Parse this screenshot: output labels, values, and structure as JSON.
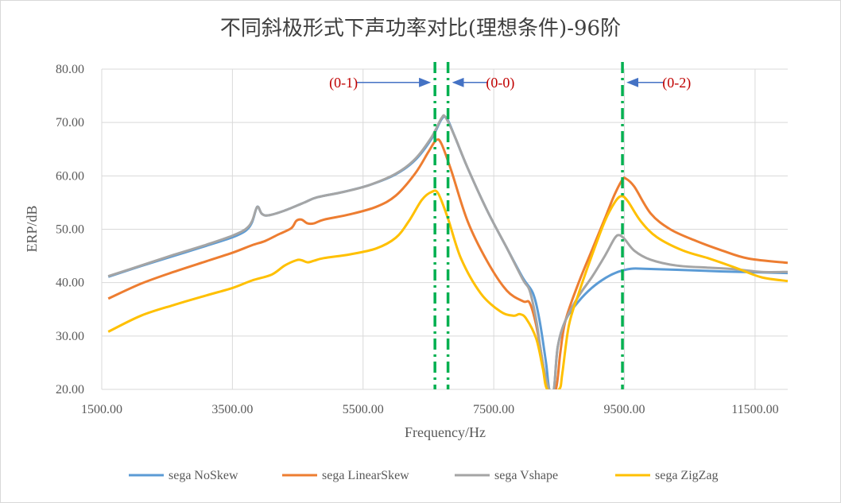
{
  "chart_data": {
    "type": "line",
    "title": "不同斜极形式下声功率对比(理想条件)-96阶",
    "xlabel": "Frequency/Hz",
    "ylabel": "ERP/dB",
    "xlim": [
      1500,
      12000
    ],
    "ylim": [
      20,
      80
    ],
    "xticks": [
      1500,
      3500,
      5500,
      7500,
      9500,
      11500
    ],
    "xtick_labels": [
      "1500.00",
      "3500.00",
      "5500.00",
      "7500.00",
      "9500.00",
      "11500.00"
    ],
    "yticks": [
      20,
      30,
      40,
      50,
      60,
      70,
      80
    ],
    "ytick_labels": [
      "20.00",
      "30.00",
      "40.00",
      "50.00",
      "60.00",
      "70.00",
      "80.00"
    ],
    "grid": true,
    "legend_position": "bottom",
    "series": [
      {
        "name": "sega NoSkew",
        "color": "#5b9bd5",
        "points": [
          [
            1600,
            41.1
          ],
          [
            2100,
            43.1
          ],
          [
            2600,
            45.0
          ],
          [
            3100,
            46.9
          ],
          [
            3500,
            48.5
          ],
          [
            3700,
            49.7
          ],
          [
            3800,
            51.3
          ],
          [
            3880,
            54.2
          ],
          [
            3950,
            52.9
          ],
          [
            4050,
            52.6
          ],
          [
            4300,
            53.5
          ],
          [
            4600,
            55.0
          ],
          [
            4800,
            56.0
          ],
          [
            5200,
            57.0
          ],
          [
            5600,
            58.3
          ],
          [
            6000,
            60.3
          ],
          [
            6300,
            63.0
          ],
          [
            6550,
            67.0
          ],
          [
            6700,
            70.6
          ],
          [
            6780,
            70.8
          ],
          [
            6900,
            67.5
          ],
          [
            7100,
            61.5
          ],
          [
            7400,
            53.5
          ],
          [
            7700,
            46.5
          ],
          [
            7950,
            40.8
          ],
          [
            8100,
            38.0
          ],
          [
            8200,
            33.0
          ],
          [
            8300,
            25.0
          ],
          [
            8350,
            20.0
          ],
          [
            8420,
            20.0
          ],
          [
            8480,
            28.0
          ],
          [
            8600,
            33.0
          ],
          [
            8800,
            36.5
          ],
          [
            9000,
            39.0
          ],
          [
            9200,
            40.8
          ],
          [
            9400,
            42.0
          ],
          [
            9600,
            42.6
          ],
          [
            9800,
            42.6
          ],
          [
            10300,
            42.4
          ],
          [
            11000,
            42.1
          ],
          [
            12000,
            41.8
          ]
        ]
      },
      {
        "name": "sega LinearSkew",
        "color": "#ed7d31",
        "points": [
          [
            1600,
            37.0
          ],
          [
            2100,
            39.8
          ],
          [
            2600,
            42.0
          ],
          [
            3100,
            44.0
          ],
          [
            3500,
            45.6
          ],
          [
            3800,
            47.0
          ],
          [
            4000,
            47.8
          ],
          [
            4200,
            49.0
          ],
          [
            4400,
            50.2
          ],
          [
            4480,
            51.6
          ],
          [
            4560,
            51.8
          ],
          [
            4650,
            51.1
          ],
          [
            4750,
            51.1
          ],
          [
            4900,
            51.8
          ],
          [
            5300,
            52.8
          ],
          [
            5700,
            54.2
          ],
          [
            6000,
            56.3
          ],
          [
            6300,
            60.5
          ],
          [
            6500,
            64.5
          ],
          [
            6620,
            66.7
          ],
          [
            6700,
            66.0
          ],
          [
            6850,
            61.0
          ],
          [
            7100,
            51.5
          ],
          [
            7400,
            44.0
          ],
          [
            7700,
            38.5
          ],
          [
            7950,
            36.5
          ],
          [
            8050,
            36.2
          ],
          [
            8150,
            32.0
          ],
          [
            8250,
            25.0
          ],
          [
            8320,
            20.0
          ],
          [
            8450,
            20.0
          ],
          [
            8520,
            27.0
          ],
          [
            8600,
            33.0
          ],
          [
            8800,
            40.0
          ],
          [
            9000,
            46.0
          ],
          [
            9200,
            52.0
          ],
          [
            9350,
            56.5
          ],
          [
            9470,
            59.3
          ],
          [
            9520,
            59.5
          ],
          [
            9650,
            58.0
          ],
          [
            9900,
            53.0
          ],
          [
            10200,
            50.0
          ],
          [
            10600,
            47.8
          ],
          [
            11000,
            46.0
          ],
          [
            11400,
            44.5
          ],
          [
            12000,
            43.7
          ]
        ]
      },
      {
        "name": "sega Vshape",
        "color": "#a5a5a5",
        "points": [
          [
            1600,
            41.2
          ],
          [
            2100,
            43.2
          ],
          [
            2600,
            45.2
          ],
          [
            3100,
            47.1
          ],
          [
            3500,
            48.8
          ],
          [
            3700,
            50.0
          ],
          [
            3800,
            51.5
          ],
          [
            3880,
            54.2
          ],
          [
            3950,
            52.9
          ],
          [
            4050,
            52.6
          ],
          [
            4300,
            53.5
          ],
          [
            4600,
            55.0
          ],
          [
            4800,
            56.0
          ],
          [
            5200,
            57.0
          ],
          [
            5600,
            58.3
          ],
          [
            6000,
            60.4
          ],
          [
            6300,
            63.2
          ],
          [
            6550,
            67.3
          ],
          [
            6700,
            70.8
          ],
          [
            6760,
            71.0
          ],
          [
            6900,
            67.5
          ],
          [
            7100,
            61.5
          ],
          [
            7400,
            53.5
          ],
          [
            7700,
            46.5
          ],
          [
            7950,
            40.5
          ],
          [
            8050,
            38.5
          ],
          [
            8150,
            33.0
          ],
          [
            8250,
            25.0
          ],
          [
            8350,
            20.0
          ],
          [
            8420,
            20.0
          ],
          [
            8480,
            28.0
          ],
          [
            8600,
            33.0
          ],
          [
            8800,
            37.5
          ],
          [
            9000,
            41.0
          ],
          [
            9200,
            45.0
          ],
          [
            9350,
            48.3
          ],
          [
            9420,
            48.9
          ],
          [
            9500,
            48.2
          ],
          [
            9650,
            46.0
          ],
          [
            9900,
            44.3
          ],
          [
            10300,
            43.2
          ],
          [
            10800,
            42.8
          ],
          [
            11200,
            42.5
          ],
          [
            11600,
            42.0
          ],
          [
            12000,
            42.0
          ]
        ]
      },
      {
        "name": "sega ZigZag",
        "color": "#ffc000",
        "points": [
          [
            1600,
            30.8
          ],
          [
            2100,
            33.8
          ],
          [
            2600,
            35.8
          ],
          [
            3100,
            37.6
          ],
          [
            3500,
            39.0
          ],
          [
            3800,
            40.4
          ],
          [
            4100,
            41.5
          ],
          [
            4300,
            43.2
          ],
          [
            4480,
            44.2
          ],
          [
            4560,
            44.2
          ],
          [
            4650,
            43.8
          ],
          [
            4750,
            44.1
          ],
          [
            4900,
            44.6
          ],
          [
            5300,
            45.3
          ],
          [
            5700,
            46.4
          ],
          [
            6000,
            48.4
          ],
          [
            6200,
            51.5
          ],
          [
            6400,
            55.5
          ],
          [
            6550,
            57.0
          ],
          [
            6650,
            56.7
          ],
          [
            6800,
            52.0
          ],
          [
            7000,
            44.5
          ],
          [
            7300,
            38.0
          ],
          [
            7600,
            34.6
          ],
          [
            7800,
            33.8
          ],
          [
            7900,
            34.1
          ],
          [
            8000,
            33.2
          ],
          [
            8150,
            29.5
          ],
          [
            8250,
            24.0
          ],
          [
            8320,
            20.0
          ],
          [
            8500,
            20.0
          ],
          [
            8550,
            23.0
          ],
          [
            8650,
            32.0
          ],
          [
            8800,
            38.0
          ],
          [
            9000,
            45.0
          ],
          [
            9200,
            51.5
          ],
          [
            9350,
            55.0
          ],
          [
            9450,
            56.2
          ],
          [
            9550,
            55.3
          ],
          [
            9750,
            51.5
          ],
          [
            10000,
            48.5
          ],
          [
            10400,
            46.0
          ],
          [
            10800,
            44.5
          ],
          [
            11200,
            42.8
          ],
          [
            11600,
            41.0
          ],
          [
            12000,
            40.3
          ]
        ]
      }
    ],
    "vlines": [
      {
        "x": 6600,
        "color": "#00b050"
      },
      {
        "x": 6800,
        "color": "#00b050"
      },
      {
        "x": 9470,
        "color": "#00b050"
      }
    ],
    "annotations": [
      {
        "text": "(0-1)",
        "text_x": 5200,
        "text_y": 77.5,
        "arrow_from": 5400,
        "arrow_to": 6520,
        "arrow_y": 77.5
      },
      {
        "text": "(0-0)",
        "text_x": 7600,
        "text_y": 77.5,
        "arrow_from": 7400,
        "arrow_to": 6880,
        "arrow_y": 77.5
      },
      {
        "text": "(0-2)",
        "text_x": 10300,
        "text_y": 77.5,
        "arrow_from": 10100,
        "arrow_to": 9550,
        "arrow_y": 77.5
      }
    ]
  }
}
